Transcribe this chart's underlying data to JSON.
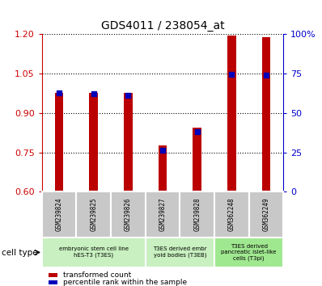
{
  "title": "GDS4011 / 238054_at",
  "samples": [
    "GSM239824",
    "GSM239825",
    "GSM239826",
    "GSM239827",
    "GSM239828",
    "GSM362248",
    "GSM362249"
  ],
  "transformed_count": [
    0.975,
    0.975,
    0.975,
    0.775,
    0.845,
    1.195,
    1.19
  ],
  "percentile_rank_left": [
    0.975,
    0.972,
    0.968,
    0.758,
    0.828,
    1.048,
    1.043
  ],
  "percentile_rank_right": [
    68,
    65,
    63,
    24,
    31,
    73,
    71
  ],
  "ylim_left": [
    0.6,
    1.2
  ],
  "ylim_right": [
    0,
    100
  ],
  "yticks_left": [
    0.6,
    0.75,
    0.9,
    1.05,
    1.2
  ],
  "yticks_right": [
    0,
    25,
    50,
    75,
    100
  ],
  "cell_groups": [
    {
      "label": "embryonic stem cell line\nhES-T3 (T3ES)",
      "start": 0,
      "end": 3,
      "color": "#c8f0c0"
    },
    {
      "label": "T3ES derived embr\nyoid bodies (T3EB)",
      "start": 3,
      "end": 5,
      "color": "#c8f0c0"
    },
    {
      "label": "T3ES derived\npancreatic islet-like\ncells (T3pi)",
      "start": 5,
      "end": 7,
      "color": "#a0e890"
    }
  ],
  "bar_color": "#bb0000",
  "dot_color": "#0000bb",
  "bar_width": 0.25,
  "left_axis_color": "#cc0000",
  "right_axis_color": "#0000cc",
  "sample_box_color": "#c8c8c8",
  "legend_items": [
    {
      "label": "transformed count",
      "color": "#bb0000"
    },
    {
      "label": "percentile rank within the sample",
      "color": "#0000bb"
    }
  ],
  "cell_type_label": "cell type"
}
